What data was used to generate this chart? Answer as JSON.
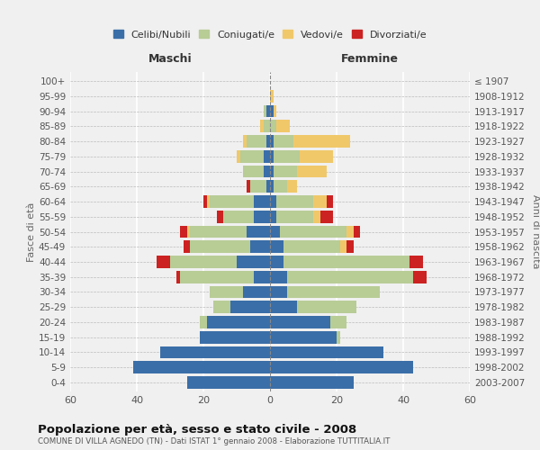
{
  "age_groups": [
    "0-4",
    "5-9",
    "10-14",
    "15-19",
    "20-24",
    "25-29",
    "30-34",
    "35-39",
    "40-44",
    "45-49",
    "50-54",
    "55-59",
    "60-64",
    "65-69",
    "70-74",
    "75-79",
    "80-84",
    "85-89",
    "90-94",
    "95-99",
    "100+"
  ],
  "birth_years": [
    "2003-2007",
    "1998-2002",
    "1993-1997",
    "1988-1992",
    "1983-1987",
    "1978-1982",
    "1973-1977",
    "1968-1972",
    "1963-1967",
    "1958-1962",
    "1953-1957",
    "1948-1952",
    "1943-1947",
    "1938-1942",
    "1933-1937",
    "1928-1932",
    "1923-1927",
    "1918-1922",
    "1913-1917",
    "1908-1912",
    "≤ 1907"
  ],
  "colors": {
    "celibe": "#3a6ea8",
    "coniugato": "#b8cc96",
    "vedovo": "#f0c86a",
    "divorziato": "#cc2222"
  },
  "males": {
    "celibe": [
      25,
      41,
      33,
      21,
      19,
      12,
      8,
      5,
      10,
      6,
      7,
      5,
      5,
      1,
      2,
      2,
      1,
      0,
      1,
      0,
      0
    ],
    "coniugato": [
      0,
      0,
      0,
      0,
      2,
      5,
      10,
      22,
      20,
      18,
      17,
      9,
      13,
      5,
      6,
      7,
      6,
      2,
      1,
      0,
      0
    ],
    "vedovo": [
      0,
      0,
      0,
      0,
      0,
      0,
      0,
      0,
      0,
      0,
      1,
      0,
      1,
      0,
      0,
      1,
      1,
      1,
      0,
      0,
      0
    ],
    "divorziato": [
      0,
      0,
      0,
      0,
      0,
      0,
      0,
      1,
      4,
      2,
      2,
      2,
      1,
      1,
      0,
      0,
      0,
      0,
      0,
      0,
      0
    ]
  },
  "females": {
    "nubile": [
      25,
      43,
      34,
      20,
      18,
      8,
      5,
      5,
      4,
      4,
      3,
      2,
      2,
      1,
      1,
      1,
      1,
      0,
      1,
      0,
      0
    ],
    "coniugata": [
      0,
      0,
      0,
      1,
      5,
      18,
      28,
      38,
      38,
      17,
      20,
      11,
      11,
      4,
      7,
      8,
      6,
      2,
      0,
      0,
      0
    ],
    "vedova": [
      0,
      0,
      0,
      0,
      0,
      0,
      0,
      0,
      0,
      2,
      2,
      2,
      4,
      3,
      9,
      10,
      17,
      4,
      1,
      1,
      0
    ],
    "divorziata": [
      0,
      0,
      0,
      0,
      0,
      0,
      0,
      4,
      4,
      2,
      2,
      4,
      2,
      0,
      0,
      0,
      0,
      0,
      0,
      0,
      0
    ]
  },
  "xlim": 60,
  "title": "Popolazione per età, sesso e stato civile - 2008",
  "subtitle": "COMUNE DI VILLA AGNEDO (TN) - Dati ISTAT 1° gennaio 2008 - Elaborazione TUTTITALIA.IT",
  "xlabel_left": "Maschi",
  "xlabel_right": "Femmine",
  "ylabel_left": "Fasce di età",
  "ylabel_right": "Anni di nascita",
  "bg_color": "#f0f0f0",
  "grid_color": "#ffffff",
  "legend_labels": [
    "Celibi/Nubili",
    "Coniugati/e",
    "Vedovi/e",
    "Divorziati/e"
  ]
}
